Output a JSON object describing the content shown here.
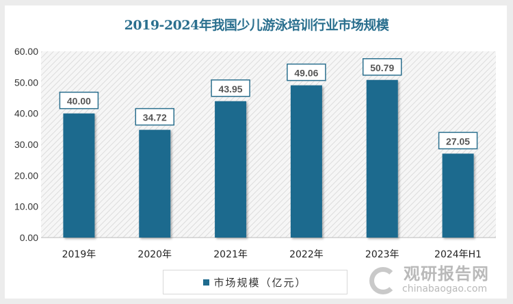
{
  "chart_data": {
    "type": "bar",
    "title": "2019-2024年我国少儿游泳培训行业市场规模",
    "categories": [
      "2019年",
      "2020年",
      "2021年",
      "2022年",
      "2023年",
      "2024年H1"
    ],
    "series": [
      {
        "name": "市场规模（亿元）",
        "values": [
          40.0,
          34.72,
          43.95,
          49.06,
          50.79,
          27.05
        ]
      }
    ],
    "data_labels": [
      "40.00",
      "34.72",
      "43.95",
      "49.06",
      "50.79",
      "27.05"
    ],
    "yticks": [
      "0.00",
      "10.00",
      "20.00",
      "30.00",
      "40.00",
      "50.00",
      "60.00"
    ],
    "ylim": [
      0,
      60
    ],
    "xlabel": "",
    "ylabel": "",
    "grid": false,
    "legend_position": "bottom",
    "bar_color": "#1f6b8e"
  },
  "watermark": {
    "cn": "观研报告网",
    "en": "chinabaogao.com"
  }
}
